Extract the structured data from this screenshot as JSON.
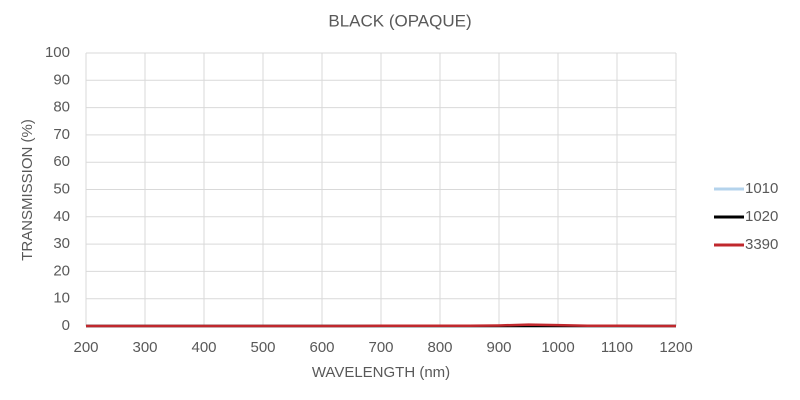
{
  "chart_data": {
    "type": "line",
    "title": "BLACK (OPAQUE)",
    "x_label": "WAVELENGTH (nm)",
    "y_label": "TRANSMISSION (%)",
    "x": [
      200,
      250,
      300,
      350,
      400,
      450,
      500,
      550,
      600,
      650,
      700,
      750,
      800,
      850,
      900,
      950,
      1000,
      1050,
      1100,
      1150,
      1200
    ],
    "series": [
      {
        "name": "1010",
        "color": "#b4d3ec",
        "values": [
          0,
          0,
          0,
          0,
          0,
          0,
          0,
          0,
          0,
          0,
          0,
          0,
          0,
          0,
          0,
          0,
          0,
          0,
          0,
          0,
          0
        ]
      },
      {
        "name": "1020",
        "color": "#000000",
        "values": [
          0,
          0,
          0,
          0,
          0,
          0,
          0,
          0,
          0,
          0,
          0,
          0,
          0,
          0,
          0,
          0,
          0,
          0,
          0,
          0,
          0
        ]
      },
      {
        "name": "3390",
        "color": "#c0282d",
        "values": [
          0,
          0,
          0,
          0,
          0,
          0,
          0,
          0,
          0,
          0,
          0.1,
          0.1,
          0.1,
          0.1,
          0.2,
          0.5,
          0.3,
          0.1,
          0.1,
          0,
          0
        ]
      }
    ],
    "xlim": [
      200,
      1200
    ],
    "xticks": [
      200,
      300,
      400,
      500,
      600,
      700,
      800,
      900,
      1000,
      1100,
      1200
    ],
    "ylim": [
      0,
      100
    ],
    "yticks": [
      0,
      10,
      20,
      30,
      40,
      50,
      60,
      70,
      80,
      90,
      100
    ],
    "grid": true,
    "legend": "right"
  }
}
